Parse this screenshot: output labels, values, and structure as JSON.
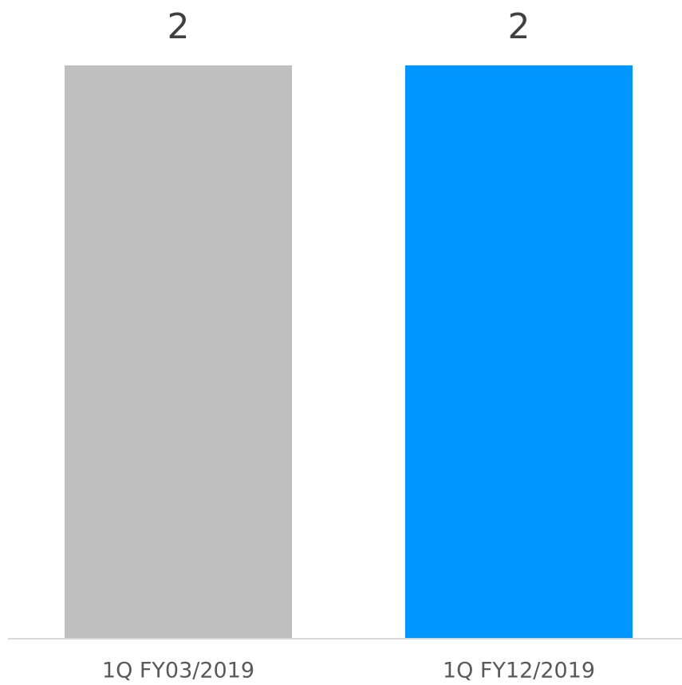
{
  "chart_data": {
    "type": "bar",
    "categories": [
      "1Q FY03/2019",
      "1Q FY12/2019"
    ],
    "values": [
      2,
      2
    ],
    "colors": [
      "#bfbfbf",
      "#0096ff"
    ]
  }
}
